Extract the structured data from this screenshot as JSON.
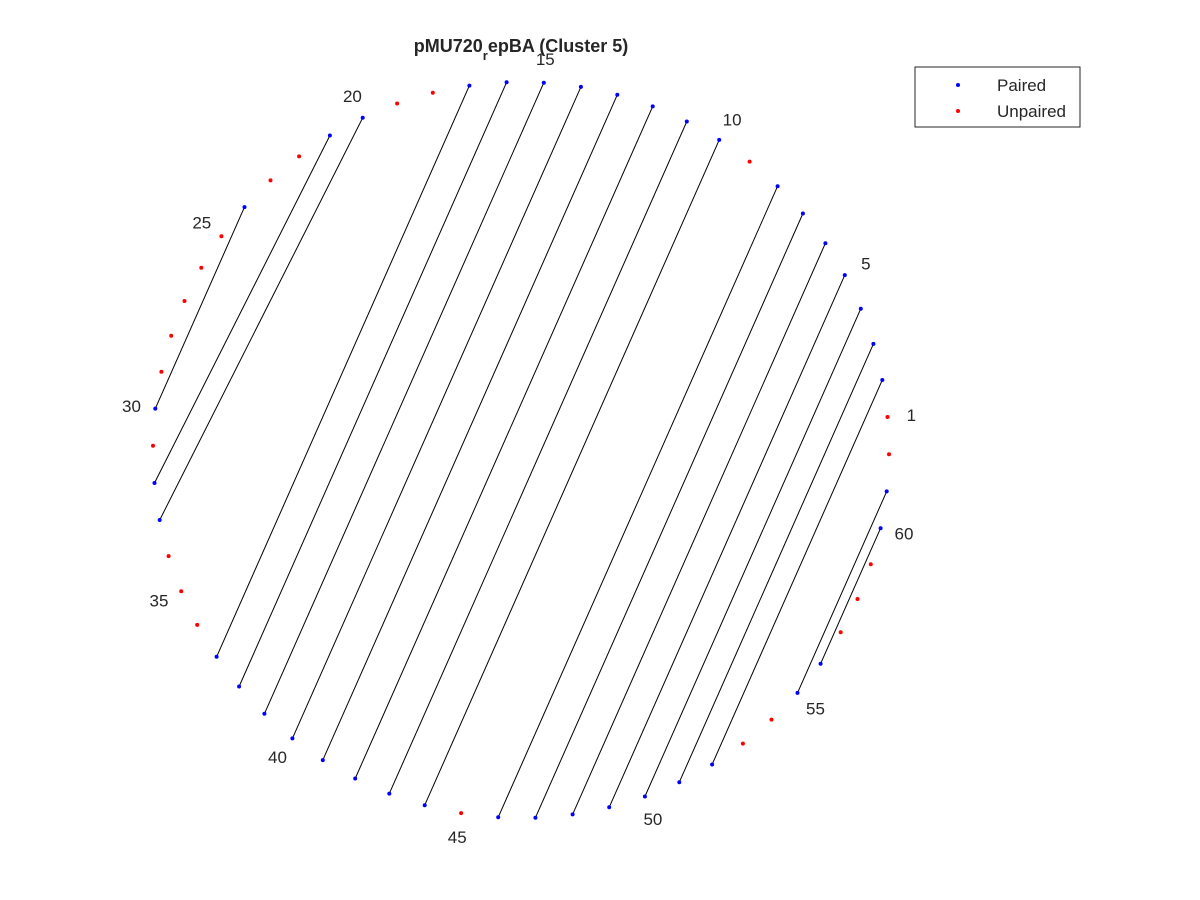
{
  "chart_data": {
    "type": "scatter",
    "subtype": "circular-arc-diagram",
    "title": {
      "prefix": "pMU720",
      "subscript": "r",
      "suffix": "epBA (Cluster 5)"
    },
    "n_positions": 62,
    "position_labels": [
      "1",
      "5",
      "10",
      "15",
      "20",
      "25",
      "30",
      "35",
      "40",
      "45",
      "50",
      "55",
      "60"
    ],
    "series": [
      {
        "name": "Paired",
        "color": "#0000ff",
        "marker": "dot"
      },
      {
        "name": "Unpaired",
        "color": "#ff0000",
        "marker": "dot"
      }
    ],
    "pairs": [
      [
        2,
        52
      ],
      [
        3,
        51
      ],
      [
        4,
        50
      ],
      [
        5,
        49
      ],
      [
        6,
        48
      ],
      [
        7,
        47
      ],
      [
        8,
        46
      ],
      [
        10,
        44
      ],
      [
        11,
        43
      ],
      [
        12,
        42
      ],
      [
        13,
        41
      ],
      [
        14,
        40
      ],
      [
        15,
        39
      ],
      [
        16,
        38
      ],
      [
        17,
        37
      ],
      [
        20,
        33
      ],
      [
        21,
        32
      ],
      [
        24,
        30
      ],
      [
        55,
        61
      ],
      [
        56,
        60
      ]
    ],
    "unpaired": [
      1,
      9,
      18,
      19,
      22,
      23,
      25,
      26,
      27,
      28,
      29,
      31,
      34,
      35,
      36,
      45,
      53,
      54,
      57,
      58,
      59,
      62
    ],
    "line_color": "#000000",
    "legend_position": "top-right",
    "axes_visible": false,
    "grid": false
  }
}
